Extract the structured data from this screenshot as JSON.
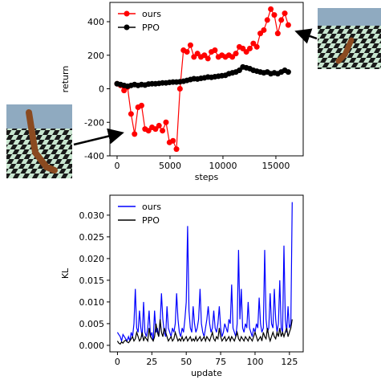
{
  "chart_data": [
    {
      "type": "line",
      "xlabel": "steps",
      "ylabel": "return",
      "x": [
        0,
        330,
        660,
        990,
        1320,
        1650,
        1980,
        2310,
        2640,
        2970,
        3300,
        3630,
        3960,
        4290,
        4620,
        4950,
        5280,
        5610,
        5940,
        6270,
        6600,
        6930,
        7260,
        7590,
        7920,
        8250,
        8580,
        8910,
        9240,
        9570,
        9900,
        10230,
        10560,
        10890,
        11220,
        11550,
        11880,
        12210,
        12540,
        12870,
        13200,
        13530,
        13860,
        14190,
        14520,
        14850,
        15180,
        15510,
        15840,
        16170
      ],
      "series": [
        {
          "name": "ours",
          "color": "#ff0000",
          "marker": true,
          "values": [
            30,
            20,
            -10,
            10,
            -150,
            -270,
            -110,
            -100,
            -240,
            -250,
            -230,
            -240,
            -220,
            -250,
            -200,
            -320,
            -310,
            -360,
            0,
            230,
            220,
            260,
            190,
            210,
            190,
            200,
            180,
            220,
            230,
            190,
            200,
            190,
            200,
            190,
            210,
            250,
            240,
            220,
            240,
            270,
            250,
            330,
            350,
            410,
            475,
            440,
            330,
            410,
            450,
            380
          ]
        },
        {
          "name": "PPO",
          "color": "#000000",
          "marker": true,
          "values": [
            30,
            25,
            20,
            15,
            20,
            25,
            20,
            25,
            22,
            28,
            30,
            30,
            32,
            35,
            35,
            38,
            40,
            40,
            42,
            45,
            50,
            55,
            60,
            58,
            62,
            65,
            70,
            68,
            72,
            75,
            78,
            80,
            90,
            95,
            100,
            110,
            130,
            125,
            120,
            110,
            105,
            100,
            95,
            100,
            90,
            95,
            90,
            100,
            110,
            100
          ]
        }
      ],
      "xlim": [
        -680,
        17580
      ],
      "ylim": [
        -400,
        515
      ],
      "xticks": [
        0,
        5000,
        10000,
        15000
      ],
      "yticks": [
        -400,
        -200,
        0,
        200,
        400
      ],
      "legend": "upper left"
    },
    {
      "type": "line",
      "xlabel": "update",
      "ylabel": "KL",
      "x": [
        0,
        1,
        2,
        3,
        4,
        5,
        6,
        7,
        8,
        9,
        10,
        11,
        12,
        13,
        14,
        15,
        16,
        17,
        18,
        19,
        20,
        21,
        22,
        23,
        24,
        25,
        26,
        27,
        28,
        29,
        30,
        31,
        32,
        33,
        34,
        35,
        36,
        37,
        38,
        39,
        40,
        41,
        42,
        43,
        44,
        45,
        46,
        47,
        48,
        49,
        50,
        51,
        52,
        53,
        54,
        55,
        56,
        57,
        58,
        59,
        60,
        61,
        62,
        63,
        64,
        65,
        66,
        67,
        68,
        69,
        70,
        71,
        72,
        73,
        74,
        75,
        76,
        77,
        78,
        79,
        80,
        81,
        82,
        83,
        84,
        85,
        86,
        87,
        88,
        89,
        90,
        91,
        92,
        93,
        94,
        95,
        96,
        97,
        98,
        99,
        100,
        101,
        102,
        103,
        104,
        105,
        106,
        107,
        108,
        109,
        110,
        111,
        112,
        113,
        114,
        115,
        116,
        117,
        118,
        119,
        120,
        121,
        122,
        123,
        124,
        125,
        126,
        127
      ],
      "series": [
        {
          "name": "ours",
          "color": "#0000ff",
          "marker": false,
          "values": [
            0.003,
            0.0025,
            0.002,
            0.001,
            0.0025,
            0.002,
            0.0015,
            0.001,
            0.002,
            0.001,
            0.003,
            0.002,
            0.005,
            0.013,
            0.004,
            0.003,
            0.008,
            0.004,
            0.002,
            0.01,
            0.003,
            0.002,
            0.004,
            0.008,
            0.002,
            0.003,
            0.001,
            0.008,
            0.003,
            0.004,
            0.002,
            0.005,
            0.012,
            0.006,
            0.003,
            0.002,
            0.009,
            0.004,
            0.003,
            0.002,
            0.004,
            0.003,
            0.005,
            0.012,
            0.006,
            0.003,
            0.002,
            0.004,
            0.003,
            0.006,
            0.01,
            0.0275,
            0.008,
            0.004,
            0.003,
            0.009,
            0.005,
            0.003,
            0.004,
            0.006,
            0.013,
            0.005,
            0.003,
            0.002,
            0.004,
            0.006,
            0.009,
            0.005,
            0.003,
            0.004,
            0.008,
            0.004,
            0.003,
            0.005,
            0.009,
            0.004,
            0.002,
            0.003,
            0.005,
            0.004,
            0.003,
            0.006,
            0.005,
            0.014,
            0.004,
            0.003,
            0.002,
            0.005,
            0.022,
            0.006,
            0.013,
            0.004,
            0.003,
            0.005,
            0.004,
            0.01,
            0.004,
            0.003,
            0.002,
            0.004,
            0.003,
            0.005,
            0.004,
            0.011,
            0.005,
            0.003,
            0.004,
            0.022,
            0.006,
            0.003,
            0.004,
            0.012,
            0.005,
            0.004,
            0.013,
            0.006,
            0.003,
            0.005,
            0.015,
            0.004,
            0.003,
            0.023,
            0.006,
            0.003,
            0.009,
            0.004,
            0.005,
            0.033
          ]
        },
        {
          "name": "PPO",
          "color": "#000000",
          "marker": false,
          "values": [
            0.001,
            0.0005,
            0.0003,
            0.0008,
            0.0005,
            0.001,
            0.0012,
            0.0008,
            0.0006,
            0.001,
            0.0015,
            0.002,
            0.001,
            0.0015,
            0.003,
            0.002,
            0.001,
            0.0015,
            0.003,
            0.001,
            0.002,
            0.0015,
            0.001,
            0.004,
            0.002,
            0.0015,
            0.001,
            0.002,
            0.005,
            0.003,
            0.002,
            0.006,
            0.003,
            0.002,
            0.004,
            0.003,
            0.002,
            0.001,
            0.0015,
            0.002,
            0.001,
            0.0015,
            0.003,
            0.002,
            0.001,
            0.0015,
            0.001,
            0.002,
            0.001,
            0.0015,
            0.002,
            0.001,
            0.0015,
            0.002,
            0.001,
            0.0015,
            0.001,
            0.002,
            0.001,
            0.0015,
            0.002,
            0.001,
            0.0015,
            0.002,
            0.001,
            0.002,
            0.0015,
            0.001,
            0.002,
            0.003,
            0.0015,
            0.001,
            0.002,
            0.0015,
            0.004,
            0.002,
            0.001,
            0.0015,
            0.002,
            0.001,
            0.0015,
            0.002,
            0.001,
            0.002,
            0.0015,
            0.001,
            0.002,
            0.003,
            0.0015,
            0.001,
            0.002,
            0.0015,
            0.001,
            0.002,
            0.0015,
            0.001,
            0.002,
            0.0015,
            0.001,
            0.002,
            0.003,
            0.002,
            0.001,
            0.0015,
            0.002,
            0.001,
            0.003,
            0.002,
            0.0015,
            0.004,
            0.002,
            0.001,
            0.002,
            0.003,
            0.002,
            0.0015,
            0.003,
            0.002,
            0.004,
            0.002,
            0.003,
            0.002,
            0.003,
            0.004,
            0.002,
            0.003,
            0.004,
            0.006
          ]
        }
      ],
      "xlim": [
        -5.5,
        135
      ],
      "ylim": [
        -0.0015,
        0.0346
      ],
      "xticks": [
        0,
        25,
        50,
        75,
        100,
        125
      ],
      "yticks": [
        {
          "value": 0,
          "label": "0.000"
        },
        {
          "value": 0.005,
          "label": "0.005"
        },
        {
          "value": 0.01,
          "label": "0.010"
        },
        {
          "value": 0.015,
          "label": "0.015"
        },
        {
          "value": 0.02,
          "label": "0.020"
        },
        {
          "value": 0.025,
          "label": "0.025"
        },
        {
          "value": 0.03,
          "label": "0.030"
        }
      ],
      "legend": "upper left"
    }
  ]
}
